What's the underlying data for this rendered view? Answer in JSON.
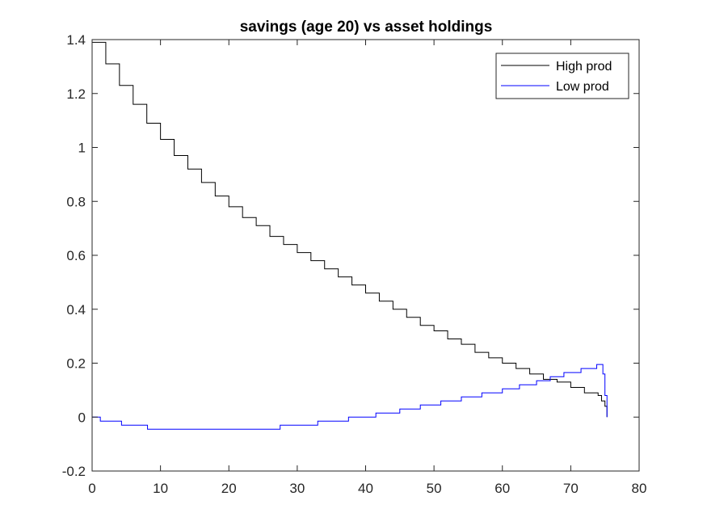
{
  "chart_data": {
    "type": "line",
    "title": "savings (age 20) vs asset holdings",
    "xlabel": "",
    "ylabel": "",
    "xlim": [
      0,
      80
    ],
    "ylim": [
      -0.2,
      1.4
    ],
    "xticks": [
      "0",
      "10",
      "20",
      "30",
      "40",
      "50",
      "60",
      "70",
      "80"
    ],
    "yticks": [
      "-0.2",
      "0",
      "0.2",
      "0.4",
      "0.6",
      "0.8",
      "1",
      "1.2",
      "1.4"
    ],
    "grid": false,
    "legend_position": "top-right",
    "line_style": "step",
    "series": [
      {
        "name": "High prod",
        "color": "#000000",
        "x": [
          0,
          2,
          4,
          6,
          8,
          10,
          12,
          14,
          16,
          18,
          20,
          22,
          24,
          26,
          28,
          30,
          32,
          34,
          36,
          38,
          40,
          42,
          44,
          46,
          48,
          50,
          52,
          54,
          56,
          58,
          60,
          62,
          64,
          66,
          68,
          70,
          72,
          74,
          74.5,
          75,
          75.3
        ],
        "y": [
          1.39,
          1.31,
          1.23,
          1.16,
          1.09,
          1.03,
          0.97,
          0.92,
          0.87,
          0.82,
          0.78,
          0.74,
          0.71,
          0.67,
          0.64,
          0.61,
          0.58,
          0.55,
          0.52,
          0.49,
          0.46,
          0.43,
          0.4,
          0.37,
          0.34,
          0.32,
          0.29,
          0.27,
          0.24,
          0.22,
          0.2,
          0.18,
          0.16,
          0.14,
          0.13,
          0.11,
          0.09,
          0.08,
          0.06,
          0.04,
          0.0
        ]
      },
      {
        "name": "Low prod",
        "color": "#0000ff",
        "x": [
          0,
          1.2,
          4.3,
          8.1,
          27.5,
          33,
          37.5,
          41.5,
          45,
          48,
          51,
          54,
          57,
          60,
          62.5,
          65,
          67,
          69,
          71.5,
          73.8,
          74.7,
          75,
          75.3
        ],
        "y": [
          0.0,
          -0.015,
          -0.03,
          -0.045,
          -0.03,
          -0.015,
          0.0,
          0.015,
          0.03,
          0.045,
          0.06,
          0.075,
          0.09,
          0.105,
          0.12,
          0.135,
          0.15,
          0.165,
          0.18,
          0.195,
          0.16,
          0.08,
          0.0
        ]
      }
    ]
  }
}
